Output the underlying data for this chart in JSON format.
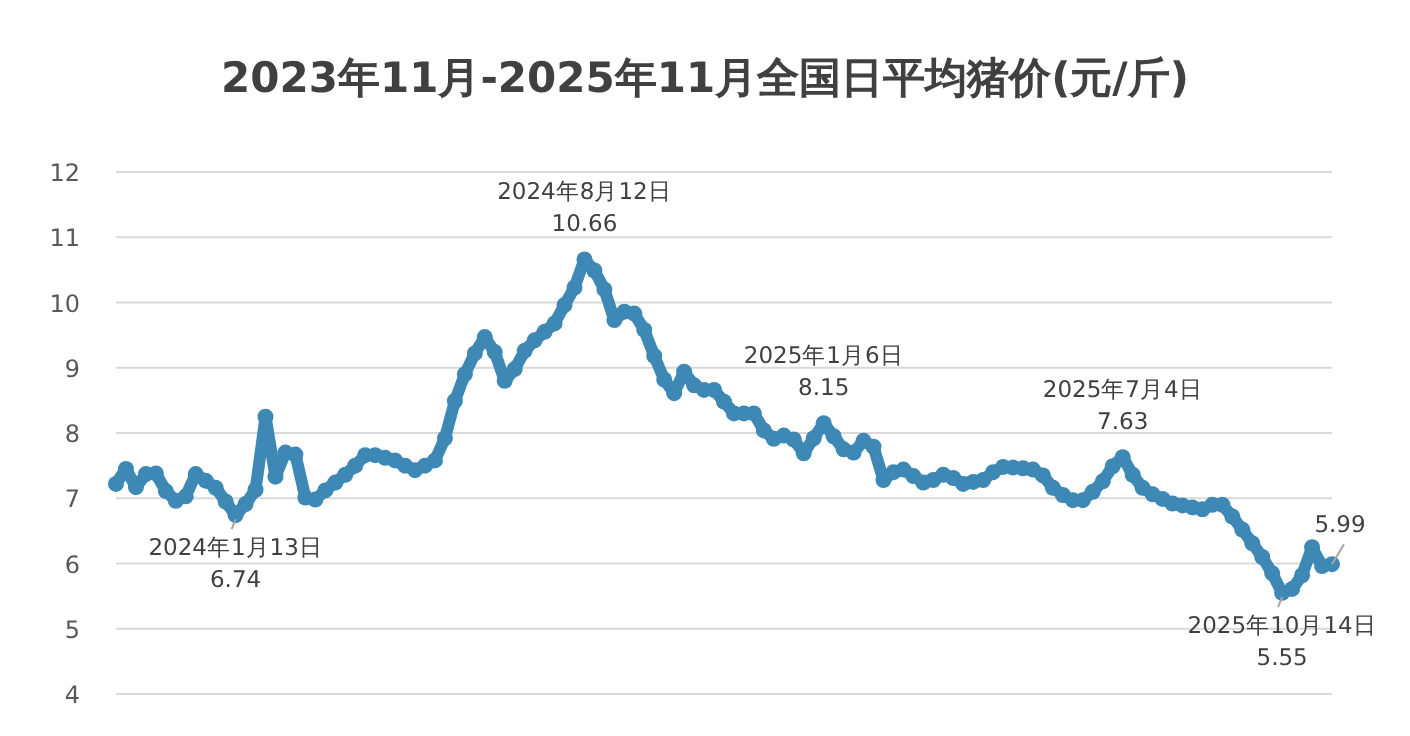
{
  "chart_data": {
    "type": "line",
    "title": "2023年11月-2025年11月全国日平均猪价(元/斤)",
    "categories": [
      null,
      null,
      null,
      null,
      null,
      null,
      null,
      null,
      null,
      null,
      null,
      null,
      null,
      null,
      null,
      null,
      null,
      null,
      null,
      null,
      null,
      null,
      null,
      null,
      null,
      null,
      null,
      null,
      null,
      null,
      null,
      null,
      null,
      null,
      null,
      null,
      null,
      null,
      null,
      null,
      null,
      null,
      null,
      null,
      null,
      null,
      null,
      null,
      null,
      null,
      null,
      null,
      null,
      null,
      null,
      null,
      null,
      null,
      null,
      null,
      null,
      null,
      null,
      null,
      null,
      null,
      null,
      null,
      null,
      null,
      null,
      null,
      null,
      null,
      null,
      null,
      null,
      null,
      null,
      null,
      null,
      null,
      null,
      null,
      null,
      null,
      null,
      null,
      null,
      null,
      null,
      null,
      null,
      null,
      null,
      null,
      null,
      null,
      null,
      null,
      null,
      null,
      null,
      null,
      null,
      null,
      null,
      null,
      null,
      null,
      null,
      null,
      null,
      null,
      null,
      null,
      null,
      null,
      null,
      null,
      null,
      null,
      null
    ],
    "series": [
      {
        "color": "#3d88b5",
        "values": [
          7.22,
          7.45,
          7.17,
          7.37,
          7.38,
          7.11,
          6.96,
          7.03,
          7.37,
          7.27,
          7.16,
          6.95,
          6.74,
          6.91,
          7.13,
          8.25,
          7.33,
          7.7,
          7.67,
          7.01,
          6.98,
          7.12,
          7.24,
          7.36,
          7.5,
          7.66,
          7.66,
          7.62,
          7.58,
          7.5,
          7.43,
          7.5,
          7.58,
          7.92,
          8.49,
          8.9,
          9.22,
          9.47,
          9.24,
          8.8,
          8.98,
          9.26,
          9.42,
          9.55,
          9.68,
          9.96,
          10.23,
          10.66,
          10.49,
          10.2,
          9.73,
          9.86,
          9.83,
          9.58,
          9.18,
          8.82,
          8.61,
          8.94,
          8.73,
          8.66,
          8.66,
          8.48,
          8.3,
          8.3,
          8.3,
          8.04,
          7.91,
          7.96,
          7.9,
          7.69,
          7.92,
          8.15,
          7.95,
          7.75,
          7.7,
          7.88,
          7.79,
          7.28,
          7.4,
          7.44,
          7.34,
          7.24,
          7.28,
          7.36,
          7.31,
          7.22,
          7.25,
          7.28,
          7.4,
          7.48,
          7.47,
          7.46,
          7.44,
          7.35,
          7.16,
          7.05,
          6.97,
          6.97,
          7.1,
          7.26,
          7.49,
          7.63,
          7.36,
          7.16,
          7.06,
          6.99,
          6.92,
          6.89,
          6.86,
          6.83,
          6.9,
          6.9,
          6.72,
          6.52,
          6.31,
          6.1,
          5.85,
          5.55,
          5.61,
          5.82,
          6.25,
          5.96,
          5.99
        ]
      }
    ],
    "ylim": [
      4,
      12
    ],
    "yticks": [
      4,
      5,
      6,
      7,
      8,
      9,
      10,
      11,
      12
    ],
    "grid": "y",
    "tick_labels": "y",
    "marker": "circle",
    "line_style": "solid",
    "annotations": [
      {
        "text": "2024年1月13日\n6.74",
        "y": 6.74
      },
      {
        "text": "2024年8月12日\n10.66",
        "y": 10.66
      },
      {
        "text": "2025年1月6日\n8.15",
        "y": 8.15
      },
      {
        "text": "2025年7月4日\n7.63",
        "y": 7.63
      },
      {
        "text": "2025年10月14日\n5.55",
        "y": 5.55
      },
      {
        "text": "5.99",
        "y": 5.99
      }
    ]
  }
}
